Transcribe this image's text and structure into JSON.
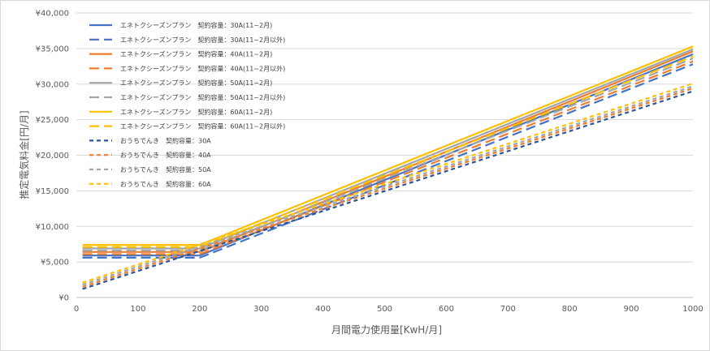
{
  "chart_data": {
    "type": "line",
    "xlabel": "月間電力使用量[KwH/月]",
    "ylabel": "推定電気料金[円/月]",
    "xlim": [
      0,
      1000
    ],
    "ylim": [
      0,
      40000
    ],
    "x_ticks": [
      "0",
      "100",
      "200",
      "300",
      "400",
      "500",
      "600",
      "700",
      "800",
      "900",
      "1000"
    ],
    "y_ticks": [
      "¥0",
      "¥5,000",
      "¥10,000",
      "¥15,000",
      "¥20,000",
      "¥25,000",
      "¥30,000",
      "¥35,000",
      "¥40,000"
    ],
    "grid": "horizontal",
    "legend_position": "top-left",
    "series": [
      {
        "name": "エネトクシーズンプラン　契約容量：30A(11~2月)",
        "color": "#4472C4",
        "dash": "solid",
        "x": [
          10,
          200,
          1000
        ],
        "y": [
          5900,
          5900,
          34200
        ]
      },
      {
        "name": "エネトクシーズンプラン　契約容量：30A(11~2月以外)",
        "color": "#4472C4",
        "dash": "long",
        "x": [
          10,
          200,
          1000
        ],
        "y": [
          5600,
          5600,
          32800
        ]
      },
      {
        "name": "エネトクシーズンプラン　契約容量：40A(11~2月)",
        "color": "#ED7D31",
        "dash": "solid",
        "x": [
          10,
          200,
          1000
        ],
        "y": [
          6400,
          6400,
          34600
        ]
      },
      {
        "name": "エネトクシーズンプラン　契約容量：40A(11~2月以外)",
        "color": "#ED7D31",
        "dash": "long",
        "x": [
          10,
          200,
          1000
        ],
        "y": [
          6100,
          6100,
          33200
        ]
      },
      {
        "name": "エネトクシーズンプラン　契約容量：50A(11~2月)",
        "color": "#A5A5A5",
        "dash": "solid",
        "x": [
          10,
          200,
          1000
        ],
        "y": [
          6900,
          6900,
          34900
        ]
      },
      {
        "name": "エネトクシーズンプラン　契約容量：50A(11~2月以外)",
        "color": "#A5A5A5",
        "dash": "long",
        "x": [
          10,
          200,
          1000
        ],
        "y": [
          6600,
          6600,
          33600
        ]
      },
      {
        "name": "エネトクシーズンプラン　契約容量：60A(11~2月)",
        "color": "#FFC000",
        "dash": "solid",
        "x": [
          10,
          200,
          1000
        ],
        "y": [
          7400,
          7400,
          35300
        ]
      },
      {
        "name": "エネトクシーズンプラン　契約容量：60A(11~2月以外)",
        "color": "#FFC000",
        "dash": "long",
        "x": [
          10,
          200,
          1000
        ],
        "y": [
          7100,
          7100,
          33900
        ]
      },
      {
        "name": "おうちでんき　契約容量：30A",
        "color": "#2F5597",
        "dash": "short",
        "x": [
          10,
          1000
        ],
        "y": [
          1200,
          29000
        ]
      },
      {
        "name": "おうちでんき　契約容量：40A",
        "color": "#ED7D31",
        "dash": "short",
        "x": [
          10,
          1000
        ],
        "y": [
          1500,
          29400
        ]
      },
      {
        "name": "おうちでんき　契約容量：50A",
        "color": "#A5A5A5",
        "dash": "short",
        "x": [
          10,
          1000
        ],
        "y": [
          1800,
          29700
        ]
      },
      {
        "name": "おうちでんき　契約容量：60A",
        "color": "#FFC000",
        "dash": "short",
        "x": [
          10,
          1000
        ],
        "y": [
          2100,
          30100
        ]
      }
    ]
  }
}
